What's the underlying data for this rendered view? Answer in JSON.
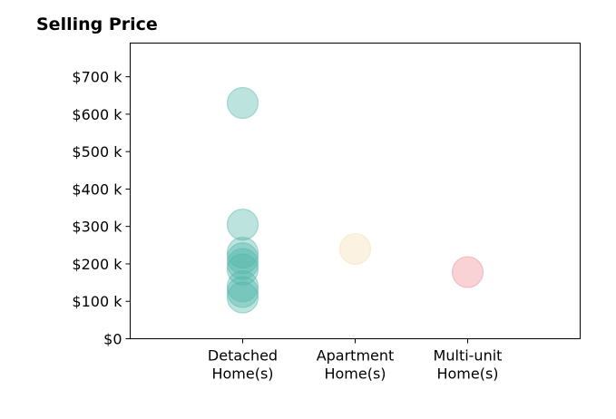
{
  "chart_data": {
    "type": "scatter",
    "title": "Selling Price",
    "xlabel": "",
    "ylabel": "",
    "categories": [
      "Detached\nHome(s)",
      "Apartment\nHome(s)",
      "Multi-unit\nHome(s)"
    ],
    "xlim": [
      -1,
      3
    ],
    "ylim": [
      0,
      790
    ],
    "y_unit": "k",
    "yticks": [
      0,
      100,
      200,
      300,
      400,
      500,
      600,
      700
    ],
    "ytick_labels": [
      "$0",
      "$100 k",
      "$200 k",
      "$300 k",
      "$400 k",
      "$500 k",
      "$600 k",
      "$700 k"
    ],
    "grid": false,
    "legend": "none",
    "series": [
      {
        "category": "Detached\nHome(s)",
        "color": "#4fb5a8",
        "values": [
          630,
          305,
          230,
          215,
          200,
          185,
          140,
          125,
          110
        ]
      },
      {
        "category": "Apartment\nHome(s)",
        "color": "#f5deb0",
        "values": [
          240
        ]
      },
      {
        "category": "Multi-unit\nHome(s)",
        "color": "#ee8a94",
        "values": [
          178
        ]
      }
    ]
  }
}
